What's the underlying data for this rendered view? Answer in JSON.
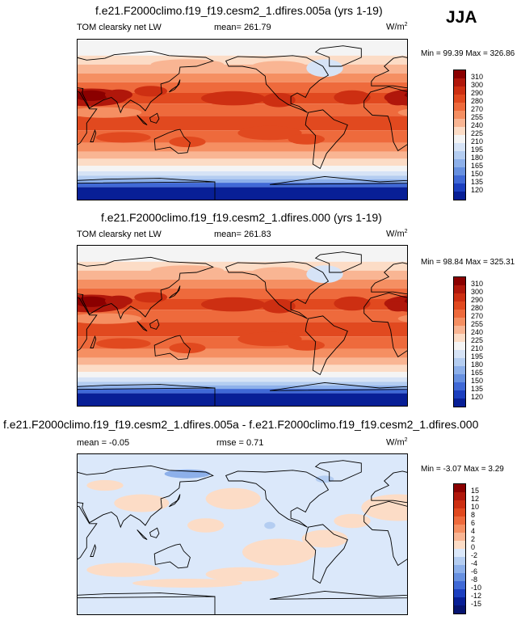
{
  "season": "JJA",
  "panels": [
    {
      "title": "f.e21.F2000climo.f19_f19.cesm2_1.dfires.005a (yrs 1-19)",
      "left_label": "TOM clearsky net LW",
      "mean_label": "mean= 261.79",
      "units": "W/m",
      "units_exp": "2",
      "minmax": "Min =  99.39 Max = 326.86",
      "colorbar": {
        "levels": [
          "310",
          "300",
          "290",
          "280",
          "270",
          "255",
          "240",
          "225",
          "210",
          "195",
          "180",
          "165",
          "150",
          "135",
          "120"
        ],
        "colors": [
          "#8b0000",
          "#b0170b",
          "#cd2f12",
          "#e1491f",
          "#ee6a3c",
          "#f58f62",
          "#f9b593",
          "#fcdcc6",
          "#f4f4f4",
          "#d6e3f6",
          "#b4cdf1",
          "#8db0ea",
          "#6790e0",
          "#4069d6",
          "#1c3fbf",
          "#081f96"
        ]
      }
    },
    {
      "title": "f.e21.F2000climo.f19_f19.cesm2_1.dfires.000 (yrs 1-19)",
      "left_label": "TOM clearsky net LW",
      "mean_label": "mean= 261.83",
      "units": "W/m",
      "units_exp": "2",
      "minmax": "Min =  98.84 Max = 325.31",
      "colorbar": {
        "levels": [
          "310",
          "300",
          "290",
          "280",
          "270",
          "255",
          "240",
          "225",
          "210",
          "195",
          "180",
          "165",
          "150",
          "135",
          "120"
        ],
        "colors": [
          "#8b0000",
          "#b0170b",
          "#cd2f12",
          "#e1491f",
          "#ee6a3c",
          "#f58f62",
          "#f9b593",
          "#fcdcc6",
          "#f4f4f4",
          "#d6e3f6",
          "#b4cdf1",
          "#8db0ea",
          "#6790e0",
          "#4069d6",
          "#1c3fbf",
          "#081f96"
        ]
      }
    },
    {
      "title": "f.e21.F2000climo.f19_f19.cesm2_1.dfires.005a - f.e21.F2000climo.f19_f19.cesm2_1.dfires.000",
      "mean_label": "mean =  -0.05",
      "rmse_label": "rmse =   0.71",
      "units": "W/m",
      "units_exp": "2",
      "minmax": "Min =  -3.07 Max =   3.29",
      "colorbar": {
        "levels": [
          "15",
          "12",
          "10",
          "8",
          "6",
          "4",
          "2",
          "0",
          "-2",
          "-4",
          "-6",
          "-8",
          "-10",
          "-12",
          "-15"
        ],
        "colors": [
          "#8b0000",
          "#b0170b",
          "#cd2f12",
          "#e1491f",
          "#ee6a3c",
          "#f58f62",
          "#f9b593",
          "#fcdcc6",
          "#dbe8fa",
          "#b4cdf1",
          "#8db0ea",
          "#6790e0",
          "#4069d6",
          "#1c3fbf",
          "#081f96",
          "#061470"
        ]
      }
    }
  ],
  "chart_data": [
    {
      "type": "heatmap",
      "title": "f.e21.F2000climo.f19_f19.cesm2_1.dfires.005a (yrs 1-19)",
      "field": "TOM clearsky net LW",
      "units": "W/m2",
      "season": "JJA",
      "mean": 261.79,
      "min": 99.39,
      "max": 326.86,
      "contour_levels": [
        120,
        135,
        150,
        165,
        180,
        195,
        210,
        225,
        240,
        255,
        270,
        280,
        290,
        300,
        310
      ],
      "lat_band_approx": [
        {
          "lat": 80,
          "value": 225
        },
        {
          "lat": 60,
          "value": 240
        },
        {
          "lat": 40,
          "value": 270
        },
        {
          "lat": 25,
          "value": 295
        },
        {
          "lat": 10,
          "value": 280
        },
        {
          "lat": -10,
          "value": 290
        },
        {
          "lat": -25,
          "value": 285
        },
        {
          "lat": -40,
          "value": 255
        },
        {
          "lat": -60,
          "value": 210
        },
        {
          "lat": -75,
          "value": 140
        },
        {
          "lat": -85,
          "value": 115
        }
      ]
    },
    {
      "type": "heatmap",
      "title": "f.e21.F2000climo.f19_f19.cesm2_1.dfires.000 (yrs 1-19)",
      "field": "TOM clearsky net LW",
      "units": "W/m2",
      "season": "JJA",
      "mean": 261.83,
      "min": 98.84,
      "max": 325.31,
      "contour_levels": [
        120,
        135,
        150,
        165,
        180,
        195,
        210,
        225,
        240,
        255,
        270,
        280,
        290,
        300,
        310
      ],
      "lat_band_approx": [
        {
          "lat": 80,
          "value": 225
        },
        {
          "lat": 60,
          "value": 240
        },
        {
          "lat": 40,
          "value": 270
        },
        {
          "lat": 25,
          "value": 295
        },
        {
          "lat": 10,
          "value": 280
        },
        {
          "lat": -10,
          "value": 290
        },
        {
          "lat": -25,
          "value": 285
        },
        {
          "lat": -40,
          "value": 255
        },
        {
          "lat": -60,
          "value": 210
        },
        {
          "lat": -75,
          "value": 140
        },
        {
          "lat": -85,
          "value": 115
        }
      ]
    },
    {
      "type": "heatmap",
      "title": "f.e21.F2000climo.f19_f19.cesm2_1.dfires.005a - f.e21.F2000climo.f19_f19.cesm2_1.dfires.000",
      "units": "W/m2",
      "mean": -0.05,
      "rmse": 0.71,
      "min": -3.07,
      "max": 3.29,
      "contour_levels": [
        -15,
        -12,
        -10,
        -8,
        -6,
        -4,
        -2,
        0,
        2,
        4,
        6,
        8,
        10,
        12,
        15
      ]
    }
  ]
}
